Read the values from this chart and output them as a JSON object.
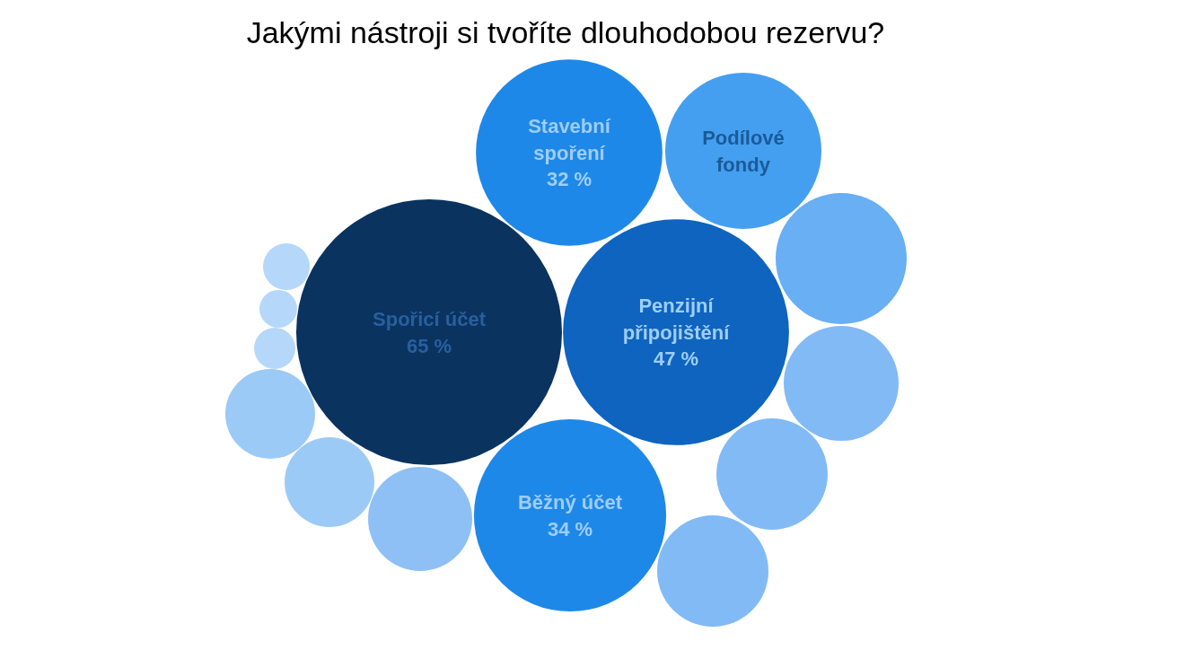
{
  "chart_data": {
    "type": "other",
    "title": "Jakými nástroji si tvoříte dlouhodobou rezervu?",
    "categories": [
      "Spořicí účet",
      "Penzijní připojištění",
      "Běžný účet",
      "Stavební spoření",
      "Podílové fondy"
    ],
    "values": [
      65,
      47,
      34,
      32,
      null
    ],
    "value_labels": [
      "65 %",
      "47 %",
      "34 %",
      "32 %",
      null
    ],
    "colors": [
      "#0a3360",
      "#0e64be",
      "#1e88e8",
      "#1e88e8",
      "#449ff0"
    ]
  }
}
